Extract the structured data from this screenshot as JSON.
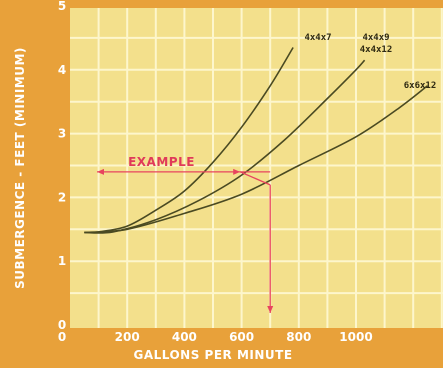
{
  "chart_data": {
    "type": "line",
    "xlabel": "GALLONS PER MINUTE",
    "ylabel": "SUBMERGENCE - FEET (MINIMUM)",
    "xlim": [
      0,
      1200
    ],
    "ylim": [
      0,
      5
    ],
    "x_ticks": [
      "0",
      "200",
      "400",
      "600",
      "800",
      "1000"
    ],
    "y_ticks": [
      "0",
      "1",
      "2",
      "3",
      "4",
      "5"
    ],
    "grid": true,
    "series": [
      {
        "name": "4x4x7",
        "points": [
          [
            50,
            1.45
          ],
          [
            100,
            1.46
          ],
          [
            200,
            1.55
          ],
          [
            300,
            1.8
          ],
          [
            400,
            2.1
          ],
          [
            500,
            2.55
          ],
          [
            600,
            3.1
          ],
          [
            700,
            3.75
          ],
          [
            780,
            4.35
          ]
        ]
      },
      {
        "name": "4x4x9\n4x4x12",
        "points": [
          [
            50,
            1.45
          ],
          [
            150,
            1.46
          ],
          [
            300,
            1.65
          ],
          [
            450,
            1.95
          ],
          [
            600,
            2.35
          ],
          [
            750,
            2.9
          ],
          [
            900,
            3.55
          ],
          [
            1000,
            4.0
          ],
          [
            1030,
            4.15
          ]
        ]
      },
      {
        "name": "6x6x12",
        "points": [
          [
            50,
            1.45
          ],
          [
            200,
            1.5
          ],
          [
            400,
            1.75
          ],
          [
            600,
            2.05
          ],
          [
            800,
            2.5
          ],
          [
            1000,
            2.95
          ],
          [
            1150,
            3.4
          ],
          [
            1250,
            3.75
          ]
        ]
      }
    ],
    "annotation": {
      "label": "EXAMPLE",
      "x": 700,
      "y": 2.4
    }
  },
  "colors": {
    "background": "#e8a13a",
    "plot_area": "#f3e08c",
    "grid": "#fdf6cc",
    "curve": "#4a4a22",
    "annotation": "#e8445e"
  }
}
